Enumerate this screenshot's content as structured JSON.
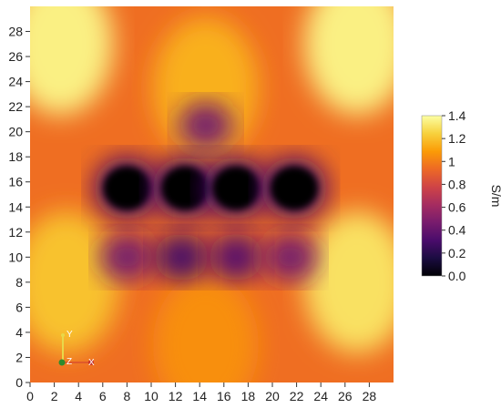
{
  "chart_data": {
    "type": "heatmap",
    "title": "",
    "xlabel": "",
    "ylabel": "",
    "xlim": [
      0,
      30
    ],
    "ylim": [
      0,
      30
    ],
    "x_ticks": [
      0,
      2,
      4,
      6,
      8,
      10,
      12,
      14,
      16,
      18,
      20,
      22,
      24,
      26,
      28
    ],
    "y_ticks": [
      0,
      2,
      4,
      6,
      8,
      10,
      12,
      14,
      16,
      18,
      20,
      22,
      24,
      26,
      28
    ],
    "colorbar": {
      "title": "S/m",
      "range": [
        0.0,
        1.4
      ],
      "tick_labels": [
        "1.4",
        "1.2",
        "1",
        "0.8",
        "0.6",
        "0.4",
        "0.2",
        "0.0"
      ],
      "tick_values": [
        1.4,
        1.2,
        1.0,
        0.8,
        0.6,
        0.4,
        0.2,
        0.0
      ],
      "colormap": "inferno",
      "stops": [
        "#000004",
        "#1b0c41",
        "#4a0c6b",
        "#781c6d",
        "#a52c60",
        "#cf4446",
        "#ed6925",
        "#fb9b06",
        "#f7d13d",
        "#fcffa4"
      ]
    },
    "background_level": 0.95,
    "features": [
      {
        "kind": "conductivity-low-blob",
        "x": 8.0,
        "y": 15.5,
        "value": 0.0
      },
      {
        "kind": "conductivity-low-blob",
        "x": 12.8,
        "y": 15.5,
        "value": 0.0
      },
      {
        "kind": "conductivity-low-blob",
        "x": 17.0,
        "y": 15.5,
        "value": 0.0
      },
      {
        "kind": "conductivity-low-blob",
        "x": 21.8,
        "y": 15.5,
        "value": 0.0
      },
      {
        "kind": "conductivity-low-region",
        "x": 14.5,
        "y": 20.5,
        "value": 0.45
      },
      {
        "kind": "conductivity-low-region",
        "x": 8.0,
        "y": 10.0,
        "value": 0.45
      },
      {
        "kind": "conductivity-low-region",
        "x": 12.5,
        "y": 10.0,
        "value": 0.3
      },
      {
        "kind": "conductivity-low-region",
        "x": 17.0,
        "y": 10.0,
        "value": 0.35
      },
      {
        "kind": "conductivity-low-region",
        "x": 21.5,
        "y": 10.0,
        "value": 0.45
      },
      {
        "kind": "conductivity-high-region",
        "x": 2.5,
        "y": 27.0,
        "value": 1.35
      },
      {
        "kind": "conductivity-high-region",
        "x": 27.0,
        "y": 27.0,
        "value": 1.35
      },
      {
        "kind": "conductivity-high-region",
        "x": 27.0,
        "y": 8.0,
        "value": 1.3
      },
      {
        "kind": "conductivity-high-region",
        "x": 3.0,
        "y": 8.0,
        "value": 1.2
      },
      {
        "kind": "conductivity-high-region",
        "x": 14.5,
        "y": 23.5,
        "value": 1.15
      },
      {
        "kind": "conductivity-high-region",
        "x": 14.5,
        "y": 3.0,
        "value": 1.05
      }
    ]
  },
  "orientation_triad": {
    "y_label": "Y",
    "z_label": "Z",
    "x_label": "X"
  }
}
